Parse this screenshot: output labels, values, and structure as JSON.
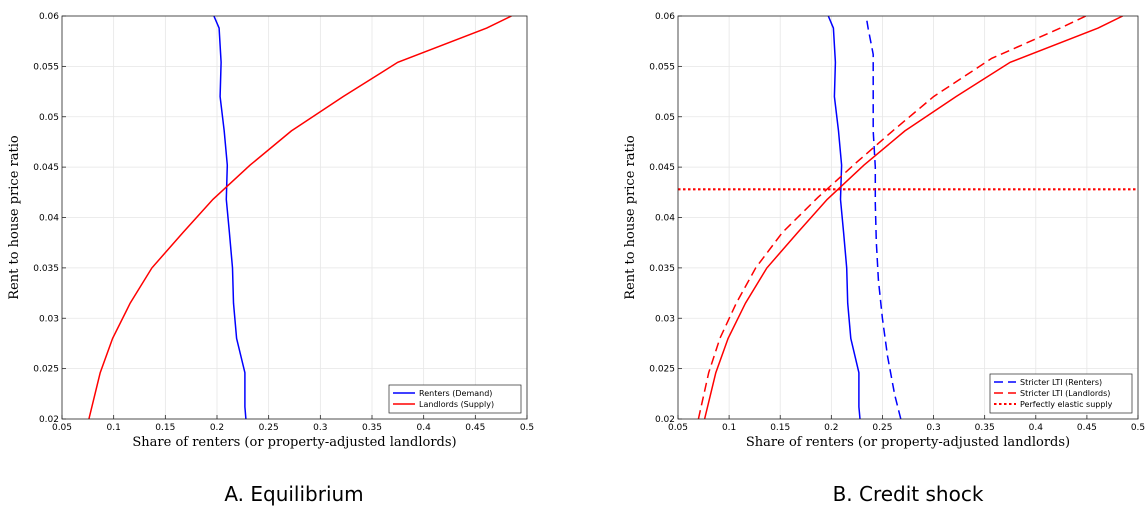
{
  "chart_data": [
    {
      "type": "line",
      "caption": "A. Equilibrium",
      "xlabel": "Share of renters (or property-adjusted landlords)",
      "ylabel": "Rent to house price ratio",
      "xlim": [
        0.05,
        0.5
      ],
      "ylim": [
        0.02,
        0.06
      ],
      "x_ticks": [
        "0.05",
        "0.1",
        "0.15",
        "0.2",
        "0.25",
        "0.3",
        "0.35",
        "0.4",
        "0.45",
        "0.5"
      ],
      "y_ticks": [
        "0.02",
        "0.025",
        "0.03",
        "0.035",
        "0.04",
        "0.045",
        "0.05",
        "0.055",
        "0.06"
      ],
      "grid": true,
      "legend_position": "bottom-right",
      "series": [
        {
          "name": "Renters (Demand)",
          "color": "#0000ff",
          "style": "solid",
          "points": [
            [
              0.228,
              0.02
            ],
            [
              0.227,
              0.0212
            ],
            [
              0.227,
              0.0246
            ],
            [
              0.219,
              0.028
            ],
            [
              0.216,
              0.0315
            ],
            [
              0.215,
              0.035
            ],
            [
              0.212,
              0.0385
            ],
            [
              0.209,
              0.0418
            ],
            [
              0.21,
              0.0452
            ],
            [
              0.207,
              0.0486
            ],
            [
              0.203,
              0.052
            ],
            [
              0.204,
              0.0554
            ],
            [
              0.202,
              0.0588
            ],
            [
              0.197,
              0.06
            ]
          ]
        },
        {
          "name": "Landlords (Supply)",
          "color": "#ff0000",
          "style": "solid",
          "points": [
            [
              0.076,
              0.02
            ],
            [
              0.087,
              0.0246
            ],
            [
              0.099,
              0.028
            ],
            [
              0.116,
              0.0315
            ],
            [
              0.137,
              0.035
            ],
            [
              0.167,
              0.0385
            ],
            [
              0.196,
              0.0418
            ],
            [
              0.232,
              0.0452
            ],
            [
              0.272,
              0.0486
            ],
            [
              0.322,
              0.052
            ],
            [
              0.375,
              0.0554
            ],
            [
              0.461,
              0.0588
            ],
            [
              0.485,
              0.06
            ]
          ]
        }
      ]
    },
    {
      "type": "line",
      "caption": "B. Credit shock",
      "xlabel": "Share of renters (or property-adjusted landlords)",
      "ylabel": "Rent to house price ratio",
      "xlim": [
        0.05,
        0.5
      ],
      "ylim": [
        0.02,
        0.06
      ],
      "x_ticks": [
        "0.05",
        "0.1",
        "0.15",
        "0.2",
        "0.25",
        "0.3",
        "0.35",
        "0.4",
        "0.45",
        "0.5"
      ],
      "y_ticks": [
        "0.02",
        "0.025",
        "0.03",
        "0.035",
        "0.04",
        "0.045",
        "0.05",
        "0.055",
        "0.06"
      ],
      "grid": true,
      "legend_position": "bottom-right",
      "series": [
        {
          "name": "",
          "color": "#0000ff",
          "style": "solid",
          "points": [
            [
              0.228,
              0.02
            ],
            [
              0.227,
              0.0212
            ],
            [
              0.227,
              0.0246
            ],
            [
              0.219,
              0.028
            ],
            [
              0.216,
              0.0315
            ],
            [
              0.215,
              0.035
            ],
            [
              0.212,
              0.0385
            ],
            [
              0.209,
              0.0418
            ],
            [
              0.21,
              0.0452
            ],
            [
              0.207,
              0.0486
            ],
            [
              0.203,
              0.052
            ],
            [
              0.204,
              0.0554
            ],
            [
              0.202,
              0.0588
            ],
            [
              0.197,
              0.06
            ]
          ]
        },
        {
          "name": "",
          "color": "#ff0000",
          "style": "solid",
          "points": [
            [
              0.076,
              0.02
            ],
            [
              0.087,
              0.0246
            ],
            [
              0.099,
              0.028
            ],
            [
              0.116,
              0.0315
            ],
            [
              0.137,
              0.035
            ],
            [
              0.167,
              0.0385
            ],
            [
              0.196,
              0.0418
            ],
            [
              0.232,
              0.0452
            ],
            [
              0.272,
              0.0486
            ],
            [
              0.322,
              0.052
            ],
            [
              0.375,
              0.0554
            ],
            [
              0.461,
              0.0588
            ],
            [
              0.485,
              0.06
            ]
          ]
        },
        {
          "name": "Stricter LTI (Renters)",
          "color": "#0000ff",
          "style": "dashed",
          "points": [
            [
              0.268,
              0.02
            ],
            [
              0.262,
              0.0224
            ],
            [
              0.255,
              0.0262
            ],
            [
              0.25,
              0.03
            ],
            [
              0.246,
              0.0338
            ],
            [
              0.244,
              0.0376
            ],
            [
              0.243,
              0.0414
            ],
            [
              0.243,
              0.045
            ],
            [
              0.241,
              0.0486
            ],
            [
              0.241,
              0.052
            ],
            [
              0.241,
              0.0562
            ],
            [
              0.236,
              0.0588
            ],
            [
              0.234,
              0.06
            ]
          ]
        },
        {
          "name": "Stricter LTI (Landlords)",
          "color": "#ff0000",
          "style": "dashed",
          "points": [
            [
              0.07,
              0.02
            ],
            [
              0.08,
              0.0246
            ],
            [
              0.091,
              0.028
            ],
            [
              0.107,
              0.0315
            ],
            [
              0.126,
              0.035
            ],
            [
              0.152,
              0.0385
            ],
            [
              0.187,
              0.042
            ],
            [
              0.225,
              0.0455
            ],
            [
              0.26,
              0.0486
            ],
            [
              0.3,
              0.052
            ],
            [
              0.357,
              0.0558
            ],
            [
              0.424,
              0.0588
            ],
            [
              0.449,
              0.06
            ]
          ]
        },
        {
          "name": "Perfectly elastic supply",
          "color": "#ff0000",
          "style": "dotted",
          "points": [
            [
              0.05,
              0.0428
            ],
            [
              0.5,
              0.0428
            ]
          ]
        }
      ]
    }
  ]
}
